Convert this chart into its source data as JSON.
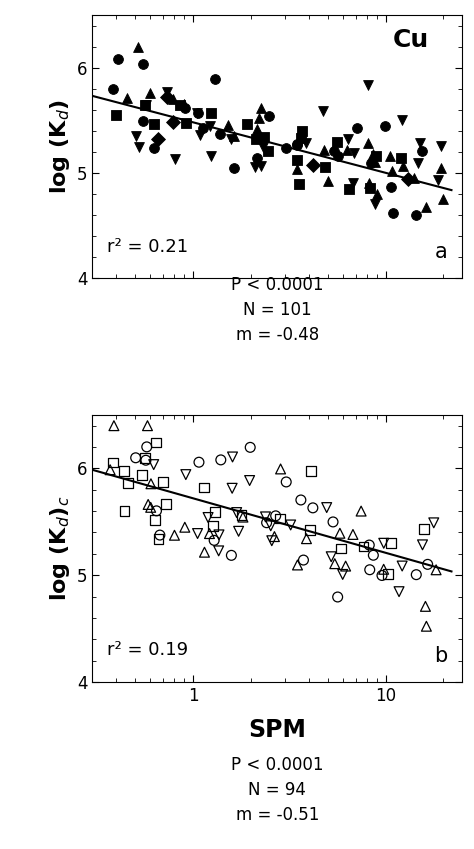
{
  "panel_a": {
    "title": "Cu",
    "ylabel": "log (K$_d$)",
    "r2": "r² = 0.21",
    "panel_label": "a",
    "stats_line1": "P < 0.0001",
    "stats_line2": "N = 101",
    "stats_line3": "m = -0.48",
    "slope": -0.48,
    "intercept": 5.48,
    "xlim": [
      0.3,
      25
    ],
    "ylim": [
      4.0,
      6.5
    ],
    "yticks": [
      4,
      5,
      6
    ]
  },
  "panel_b": {
    "ylabel": "log (K$_d$)$_c$",
    "r2": "r² = 0.19",
    "panel_label": "b",
    "stats_line1": "P < 0.0001",
    "stats_line2": "N = 94",
    "stats_line3": "m = -0.51",
    "slope": -0.51,
    "intercept": 5.72,
    "xlim": [
      0.3,
      25
    ],
    "ylim": [
      4.0,
      6.5
    ],
    "yticks": [
      4,
      5,
      6
    ]
  },
  "xlabel": "SPM",
  "background_color": "white",
  "text_color": "black",
  "marker_size": 50,
  "line_width": 1.5,
  "tick_label_size": 12,
  "ylabel_fontsize": 16,
  "annotation_fontsize": 13,
  "panel_label_fontsize": 15,
  "title_fontsize": 18,
  "stats_fontsize": 12,
  "spm_fontsize": 17
}
